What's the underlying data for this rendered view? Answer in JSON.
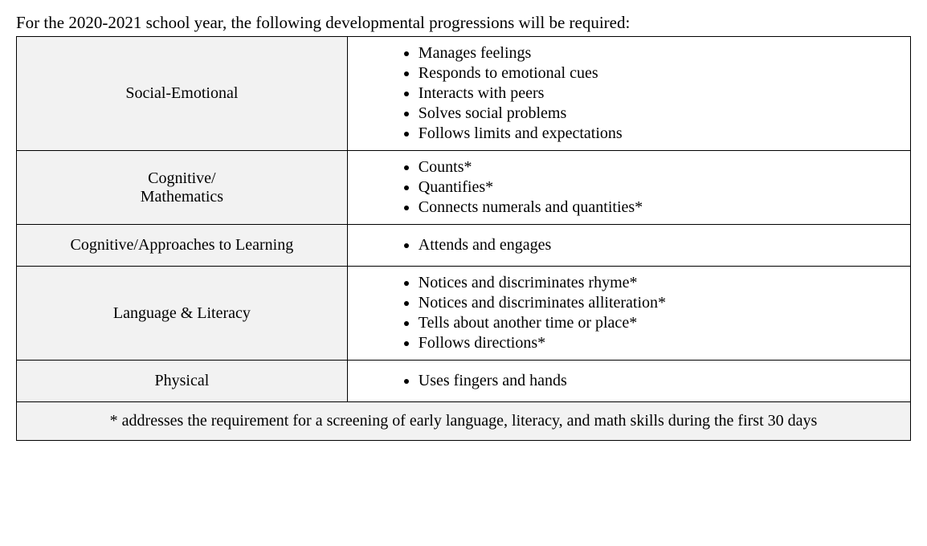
{
  "intro": "For the 2020-2021 school year, the following developmental progressions will be required:",
  "colors": {
    "text": "#000000",
    "background": "#ffffff",
    "category_bg": "#f2f2f2",
    "border": "#000000"
  },
  "typography": {
    "font_family": "Times New Roman",
    "body_fontsize_pt": 15,
    "intro_fontsize_pt": 15
  },
  "table": {
    "column_widths_pct": [
      37,
      63
    ],
    "rows": [
      {
        "category": "Social-Emotional",
        "items": [
          "Manages feelings",
          "Responds to emotional cues",
          "Interacts with peers",
          "Solves social problems",
          "Follows limits and expectations"
        ]
      },
      {
        "category": "Cognitive/\nMathematics",
        "items": [
          "Counts*",
          "Quantifies*",
          "Connects numerals and quantities*"
        ]
      },
      {
        "category": "Cognitive/Approaches to Learning",
        "items": [
          "Attends and engages"
        ]
      },
      {
        "category": "Language & Literacy",
        "items": [
          "Notices and discriminates rhyme*",
          "Notices and discriminates alliteration*",
          "Tells about another time or place*",
          "Follows directions*"
        ]
      },
      {
        "category": "Physical",
        "items": [
          "Uses fingers and hands"
        ]
      }
    ],
    "footnote": "* addresses the requirement for a screening of early language, literacy, and math skills during the first 30 days"
  }
}
